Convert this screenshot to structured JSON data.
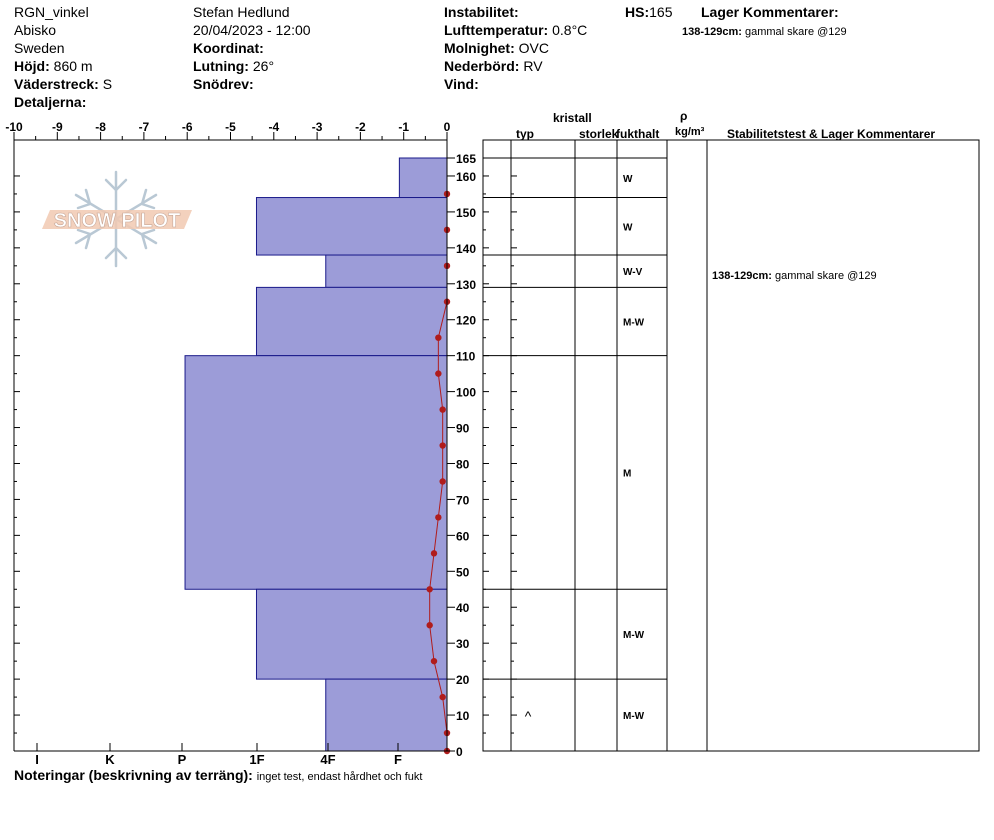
{
  "header": {
    "site": "RGN_vinkel",
    "location": "Abisko",
    "country": "Sweden",
    "elevation_label": "Höjd:",
    "elevation_value": "860 m",
    "aspect_label": "Väderstreck:",
    "aspect_value": "S",
    "details_label": "Detaljerna:",
    "observer": "Stefan Hedlund",
    "datetime": "20/04/2023 - 12:00",
    "coord_label": "Koordinat:",
    "slope_label": "Lutning:",
    "slope_value": "26°",
    "drift_label": "Snödrev:",
    "instability_label": "Instabilitet:",
    "airtemp_label": "Lufttemperatur:",
    "airtemp_value": "0.8°C",
    "cloud_label": "Molnighet:",
    "cloud_value": "OVC",
    "precip_label": "Nederbörd:",
    "precip_value": "RV",
    "wind_label": "Vind:",
    "hs_label": "HS:",
    "hs_value": "165",
    "layer_comments_label": "Lager Kommentarer:",
    "layer_comment_range": "138-129cm:",
    "layer_comment_text": "gammal skare @129"
  },
  "logo": {
    "text": "SNOW PILOT"
  },
  "table": {
    "crystal_header": "kristall",
    "type_header": "typ",
    "size_header": "storlek",
    "moisture_header": "fukthalt",
    "density_symbol": "ρ",
    "density_unit": "kg/m³",
    "stability_header": "Stabilitetstest & Lager Kommentarer",
    "comment_range": "138-129cm:",
    "comment_text": "gammal skare @129"
  },
  "footer": {
    "notes_label": "Noteringar (beskrivning av terräng):",
    "notes_text": "inget test, endast hårdhet och fukt"
  },
  "colors": {
    "hardness_fill": "#9c9cd8",
    "temp_line": "#b01c1c"
  },
  "chart_data": {
    "type": "bar",
    "temp_axis": {
      "min": -10,
      "max": 0,
      "ticks": [
        "-10",
        "-9",
        "-8",
        "-7",
        "-6",
        "-5",
        "-4",
        "-3",
        "-2",
        "-1",
        "0"
      ]
    },
    "hardness_axis": {
      "ticks": [
        "I",
        "K",
        "P",
        "1F",
        "4F",
        "F"
      ]
    },
    "height_axis": {
      "min": 0,
      "max": 165,
      "ticks": [
        0,
        10,
        20,
        30,
        40,
        50,
        60,
        70,
        80,
        90,
        100,
        110,
        120,
        130,
        140,
        150,
        160,
        165
      ]
    },
    "layers": [
      {
        "top": 165,
        "bottom": 154,
        "hardness": 1.1,
        "moisture": "W",
        "grain": ""
      },
      {
        "top": 154,
        "bottom": 138,
        "hardness": 4.4,
        "moisture": "W",
        "grain": ""
      },
      {
        "top": 138,
        "bottom": 129,
        "hardness": 2.8,
        "moisture": "W-V",
        "grain": ""
      },
      {
        "top": 129,
        "bottom": 110,
        "hardness": 4.4,
        "moisture": "M-W",
        "grain": ""
      },
      {
        "top": 110,
        "bottom": 45,
        "hardness": 6.05,
        "moisture": "M",
        "grain": ""
      },
      {
        "top": 45,
        "bottom": 20,
        "hardness": 4.4,
        "moisture": "M-W",
        "grain": ""
      },
      {
        "top": 20,
        "bottom": 0,
        "hardness": 2.8,
        "moisture": "M-W",
        "grain": "^"
      }
    ],
    "temperature_profile": [
      {
        "height": 155,
        "temp": 0.0
      },
      {
        "height": 145,
        "temp": 0.0
      },
      {
        "height": 135,
        "temp": 0.0
      },
      {
        "height": 125,
        "temp": 0.0
      },
      {
        "height": 115,
        "temp": -0.2
      },
      {
        "height": 105,
        "temp": -0.2
      },
      {
        "height": 95,
        "temp": -0.1
      },
      {
        "height": 85,
        "temp": -0.1
      },
      {
        "height": 75,
        "temp": -0.1
      },
      {
        "height": 65,
        "temp": -0.2
      },
      {
        "height": 55,
        "temp": -0.3
      },
      {
        "height": 45,
        "temp": -0.4
      },
      {
        "height": 35,
        "temp": -0.4
      },
      {
        "height": 25,
        "temp": -0.3
      },
      {
        "height": 15,
        "temp": -0.1
      },
      {
        "height": 5,
        "temp": 0.0
      },
      {
        "height": 0,
        "temp": 0.0
      }
    ]
  }
}
